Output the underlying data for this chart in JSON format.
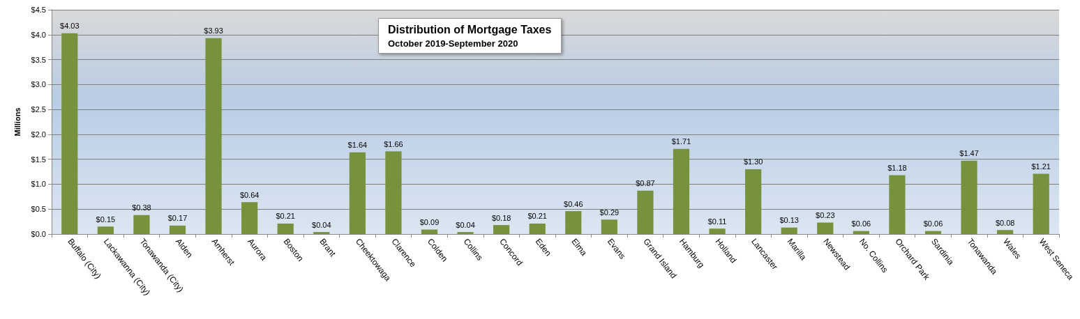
{
  "chart_data": {
    "type": "bar",
    "title": "Distribution of Mortgage Taxes",
    "subtitle": "October 2019-September 2020",
    "ylabel": "Millions",
    "categories": [
      "Buffalo (City)",
      "Lackawanna (City)",
      "Tonawanda (City)",
      "Alden",
      "Amherst",
      "Aurora",
      "Boston",
      "Brant",
      "Cheektowaga",
      "Clarence",
      "Colden",
      "Collins",
      "Concord",
      "Eden",
      "Elma",
      "Evans",
      "Grand Island",
      "Hamburg",
      "Holland",
      "Lancaster",
      "Marilla",
      "Newstead",
      "No. Collins",
      "Orchard Park",
      "Sardinia",
      "Tonawanda",
      "Wales",
      "West Seneca"
    ],
    "values": [
      4.03,
      0.15,
      0.38,
      0.17,
      3.93,
      0.64,
      0.21,
      0.04,
      1.64,
      1.66,
      0.09,
      0.04,
      0.18,
      0.21,
      0.46,
      0.29,
      0.87,
      1.71,
      0.11,
      1.3,
      0.13,
      0.23,
      0.06,
      1.18,
      0.06,
      1.47,
      0.08,
      1.21
    ],
    "value_labels": [
      "$4.03",
      "$0.15",
      "$0.38",
      "$0.17",
      "$3.93",
      "$0.64",
      "$0.21",
      "$0.04",
      "$1.64",
      "$1.66",
      "$0.09",
      "$0.04",
      "$0.18",
      "$0.21",
      "$0.46",
      "$0.29",
      "$0.87",
      "$1.71",
      "$0.11",
      "$1.30",
      "$0.13",
      "$0.23",
      "$0.06",
      "$1.18",
      "$0.06",
      "$1.47",
      "$0.08",
      "$1.21"
    ],
    "color": "#76923c",
    "ylim": [
      0,
      4.5
    ],
    "yticks": [
      {
        "value": 0,
        "label": "$0.0"
      },
      {
        "value": 0.5,
        "label": "$0.5"
      },
      {
        "value": 1,
        "label": "$1.0"
      },
      {
        "value": 1.5,
        "label": "$1.5"
      },
      {
        "value": 2,
        "label": "$2.0"
      },
      {
        "value": 2.5,
        "label": "$2.5"
      },
      {
        "value": 3,
        "label": "$3.0"
      },
      {
        "value": 3.5,
        "label": "$3.5"
      },
      {
        "value": 4,
        "label": "$4.0"
      },
      {
        "value": 4.5,
        "label": "$4.5"
      }
    ],
    "grid": "y"
  }
}
